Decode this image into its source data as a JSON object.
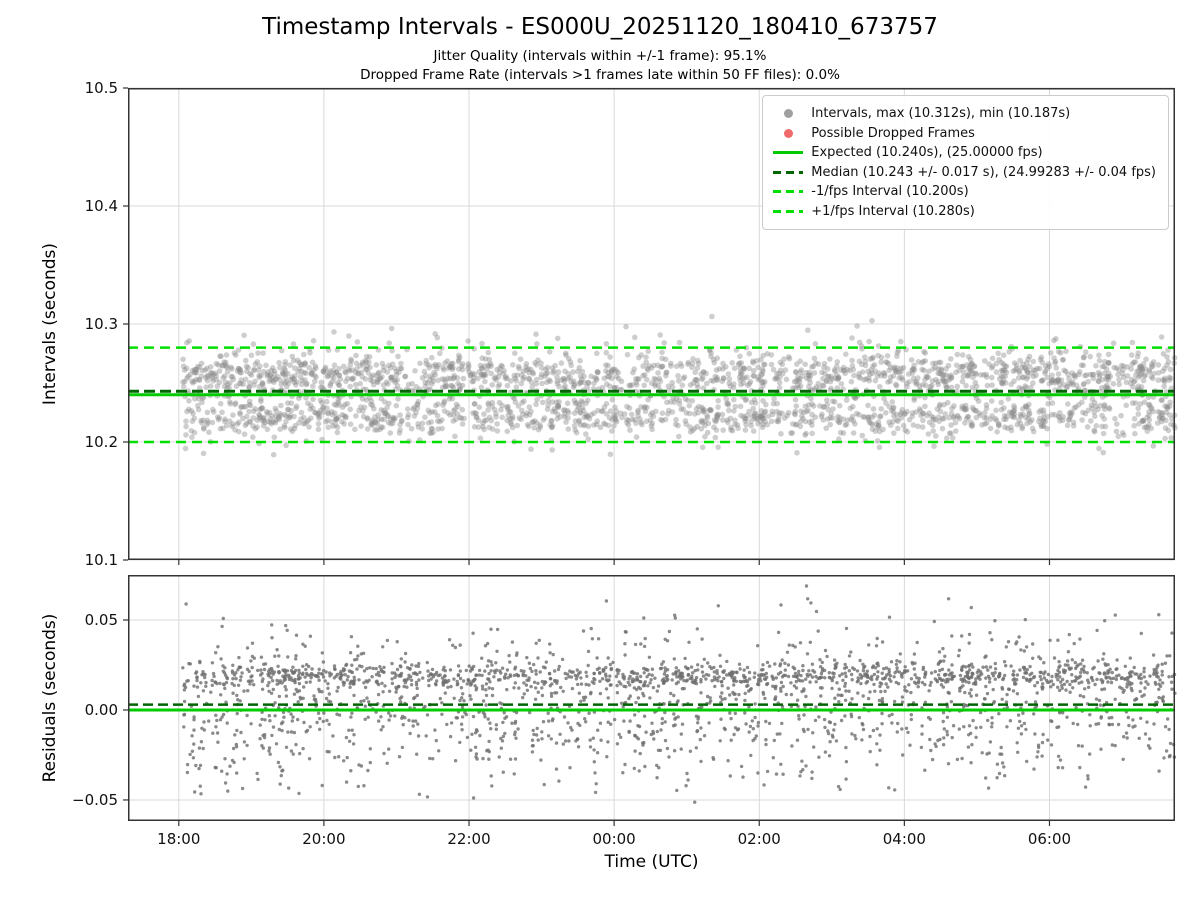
{
  "figure": {
    "title": "Timestamp Intervals - ES000U_20251120_180410_673757",
    "subtitle1": "Jitter Quality (intervals within +/-1 frame): 95.1%",
    "subtitle2": "Dropped Frame Rate (intervals >1 frames late within 50 FF files): 0.0%",
    "xlabel": "Time (UTC)",
    "background": "#ffffff"
  },
  "colors": {
    "grid": "#d9d9d9",
    "spine": "#333333",
    "scatter_top": "#8a8a8a",
    "scatter_bottom": "#6e6e6e",
    "expected_green": "#00cc00",
    "fps_green": "#00e000",
    "median_darkgreen": "#006400",
    "dropped_red": "#f26b6b"
  },
  "chart_data": [
    {
      "id": "intervals",
      "type": "scatter",
      "title": "Timestamp Intervals - ES000U_20251120_180410_673757",
      "ylabel": "Intervals (seconds)",
      "ylim": [
        10.1,
        10.5
      ],
      "yticks": [
        {
          "value": 10.1,
          "label": "10.1"
        },
        {
          "value": 10.2,
          "label": "10.2"
        },
        {
          "value": 10.3,
          "label": "10.3"
        },
        {
          "value": 10.4,
          "label": "10.4"
        },
        {
          "value": 10.5,
          "label": "10.5"
        }
      ],
      "xlim": [
        17.3,
        31.73
      ],
      "xticks": [
        18,
        20,
        22,
        24,
        26,
        28,
        30
      ],
      "xtick_labels": [
        "18:00",
        "20:00",
        "22:00",
        "00:00",
        "02:00",
        "04:00",
        "06:00"
      ],
      "grid": true,
      "lines": [
        {
          "name": "expected",
          "y": 10.24,
          "color": "#00cc00",
          "width": 3,
          "dash": null
        },
        {
          "name": "median",
          "y": 10.243,
          "color": "#006400",
          "width": 3,
          "dash": "11,5"
        },
        {
          "name": "minus-1fps-interval",
          "y": 10.2,
          "color": "#00e000",
          "width": 2.5,
          "dash": "10,6"
        },
        {
          "name": "plus-1fps-interval",
          "y": 10.28,
          "color": "#00e000",
          "width": 2.5,
          "dash": "10,6"
        }
      ],
      "scatter": {
        "n": 2600,
        "seed": 1337,
        "x_range": [
          18.05,
          31.73
        ],
        "point_radius": 2.8,
        "color": "#8a8a8a",
        "opacity": 0.42,
        "min": 10.187,
        "max": 10.312,
        "bands": [
          {
            "center": 10.257,
            "sigma": 0.009,
            "weight": 0.46
          },
          {
            "center": 10.221,
            "sigma": 0.007,
            "weight": 0.32
          },
          {
            "center": 10.242,
            "sigma": 0.025,
            "weight": 0.22
          }
        ]
      },
      "stats": {
        "max_interval_s": 10.312,
        "min_interval_s": 10.187,
        "expected_interval_s": 10.24,
        "expected_fps": "25.00000",
        "median_interval_s": 10.243,
        "median_interval_err_s": 0.017,
        "median_fps": 24.99283,
        "median_fps_err": 0.04,
        "minus_1fps_interval_s": 10.2,
        "plus_1fps_interval_s": 10.28,
        "jitter_quality_pct": "95.1%",
        "dropped_frame_rate_pct": "0.0%"
      },
      "legend": {
        "position": "top-right",
        "items": [
          {
            "label": "Intervals, max (10.312s), min (10.187s)",
            "marker": "dot",
            "color": "#a0a0a0"
          },
          {
            "label": "Possible Dropped Frames",
            "marker": "dot",
            "color": "#f26b6b"
          },
          {
            "label": "Expected (10.240s), (25.00000 fps)",
            "marker": "line",
            "color": "#00cc00"
          },
          {
            "label": "Median (10.243 +/- 0.017 s), (24.99283 +/- 0.04 fps)",
            "marker": "dashed",
            "color": "#006400"
          },
          {
            "label": "-1/fps Interval (10.200s)",
            "marker": "dashed",
            "color": "#00e000"
          },
          {
            "label": "+1/fps Interval (10.280s)",
            "marker": "dashed",
            "color": "#00e000"
          }
        ]
      }
    },
    {
      "id": "residuals",
      "type": "scatter",
      "ylabel": "Residuals (seconds)",
      "xlabel": "Time (UTC)",
      "ylim": [
        -0.0617,
        0.075
      ],
      "yticks": [
        {
          "value": -0.05,
          "label": "−0.05"
        },
        {
          "value": 0.0,
          "label": "0.00"
        },
        {
          "value": 0.05,
          "label": "0.05"
        }
      ],
      "xlim": [
        17.3,
        31.73
      ],
      "xticks": [
        18,
        20,
        22,
        24,
        26,
        28,
        30
      ],
      "xtick_labels": [
        "18:00",
        "20:00",
        "22:00",
        "00:00",
        "02:00",
        "04:00",
        "06:00"
      ],
      "grid": true,
      "lines": [
        {
          "name": "zero-residual-expected",
          "y": 0.0,
          "color": "#00cc00",
          "width": 3,
          "dash": null
        },
        {
          "name": "median-residual",
          "y": 0.003,
          "color": "#006400",
          "width": 2.5,
          "dash": "10,5"
        }
      ],
      "scatter": {
        "n": 2400,
        "seed": 777,
        "x_range": [
          18.05,
          31.73
        ],
        "point_radius": 1.7,
        "color": "#6e6e6e",
        "opacity": 0.8,
        "min": -0.052,
        "max": 0.075,
        "bands": [
          {
            "center": 0.019,
            "sigma": 0.0035,
            "weight": 0.38
          },
          {
            "center": 0.002,
            "sigma": 0.021,
            "weight": 0.62
          }
        ]
      }
    }
  ]
}
